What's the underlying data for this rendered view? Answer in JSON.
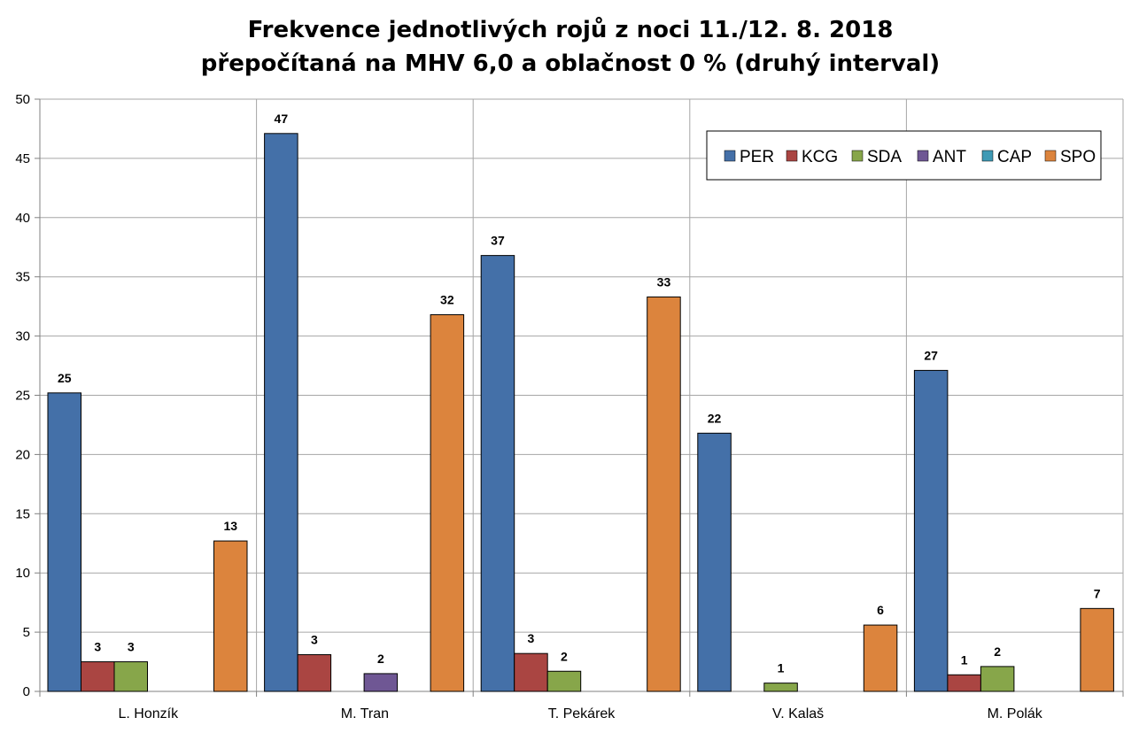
{
  "chart_data": {
    "type": "bar",
    "title_lines": [
      "Frekvence jednotlivých rojů z noci 11./12. 8. 2018",
      "přepočítaná na MHV 6,0 a oblačnost 0 % (druhý interval)"
    ],
    "xlabel": "",
    "ylabel": "",
    "categories": [
      "L. Honzík",
      "M. Tran",
      "T. Pekárek",
      "V. Kalaš",
      "M. Polák"
    ],
    "ylim": [
      0,
      50
    ],
    "yticks": [
      0,
      5,
      10,
      15,
      20,
      25,
      30,
      35,
      40,
      45,
      50
    ],
    "grid": true,
    "legend_position": "top-right",
    "series": [
      {
        "name": "PER",
        "color": "#4470A8",
        "values": [
          25.2,
          47.1,
          36.8,
          21.8,
          27.1
        ],
        "labels": [
          "25",
          "47",
          "37",
          "22",
          "27"
        ]
      },
      {
        "name": "KCG",
        "color": "#AA4542",
        "values": [
          2.5,
          3.1,
          3.2,
          null,
          1.4
        ],
        "labels": [
          "3",
          "3",
          "3",
          "",
          "1"
        ]
      },
      {
        "name": "SDA",
        "color": "#87A64A",
        "values": [
          2.5,
          null,
          1.7,
          0.7,
          2.1
        ],
        "labels": [
          "3",
          "",
          "2",
          "1",
          "2"
        ]
      },
      {
        "name": "ANT",
        "color": "#6F5794",
        "values": [
          null,
          1.5,
          null,
          null,
          null
        ],
        "labels": [
          "",
          "2",
          "",
          "",
          ""
        ]
      },
      {
        "name": "CAP",
        "color": "#3F9AB5",
        "values": [
          null,
          null,
          null,
          null,
          null
        ],
        "labels": [
          "",
          "",
          "",
          "",
          ""
        ]
      },
      {
        "name": "SPO",
        "color": "#DC843D",
        "values": [
          12.7,
          31.8,
          33.3,
          5.6,
          7.0
        ],
        "labels": [
          "13",
          "32",
          "33",
          "6",
          "7"
        ]
      }
    ]
  }
}
